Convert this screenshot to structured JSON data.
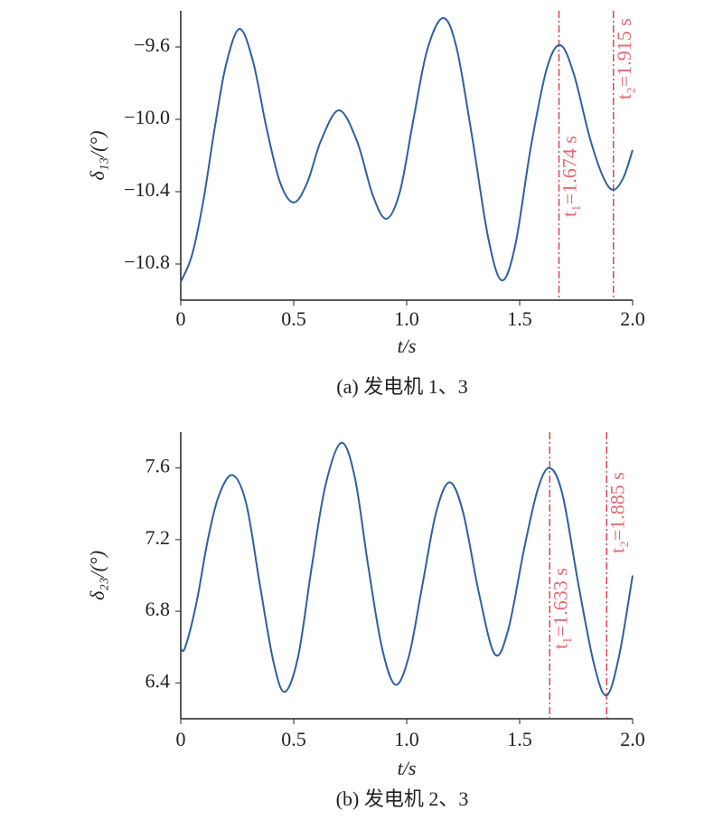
{
  "chart_data": [
    {
      "type": "line",
      "x_label": "t/s",
      "y_label": "δ₁₃/(°)",
      "caption": "(a) 发电机 1、3",
      "x": [
        0,
        0.05,
        0.1,
        0.15,
        0.2,
        0.26,
        0.32,
        0.38,
        0.44,
        0.5,
        0.56,
        0.62,
        0.7,
        0.78,
        0.85,
        0.91,
        0.97,
        1.03,
        1.09,
        1.16,
        1.22,
        1.29,
        1.36,
        1.42,
        1.48,
        1.55,
        1.62,
        1.68,
        1.74,
        1.81,
        1.87,
        1.915,
        1.96,
        2.0
      ],
      "series": [
        {
          "color": "#2e5fa3",
          "values": [
            -10.9,
            -10.75,
            -10.45,
            -10.05,
            -9.7,
            -9.5,
            -9.68,
            -10.05,
            -10.35,
            -10.46,
            -10.35,
            -10.12,
            -9.95,
            -10.12,
            -10.42,
            -10.55,
            -10.4,
            -10.0,
            -9.62,
            -9.44,
            -9.6,
            -10.1,
            -10.65,
            -10.89,
            -10.7,
            -10.15,
            -9.72,
            -9.59,
            -9.75,
            -10.1,
            -10.32,
            -10.39,
            -10.32,
            -10.17
          ]
        }
      ],
      "xlim": [
        0,
        2.0
      ],
      "xticks": [
        0,
        0.5,
        {
          "value": 1.0,
          "label": "1.0"
        },
        1.5,
        {
          "value": 2.0,
          "label": "2.0"
        }
      ],
      "ylim": [
        -11.0,
        -9.4
      ],
      "yticks": [
        {
          "value": -9.6,
          "label": "−9.6"
        },
        {
          "value": -10.0,
          "label": "−10.0"
        },
        {
          "value": -10.4,
          "label": "−10.4"
        },
        {
          "value": -10.8,
          "label": "−10.8"
        }
      ],
      "vlines": [
        {
          "value": 1.674,
          "label": "t₁=1.674 s"
        },
        {
          "value": 1.915,
          "label": "t₂=1.915 s"
        }
      ],
      "vline_color": "#e0434f"
    },
    {
      "type": "line",
      "x_label": "t/s",
      "y_label": "δ₂₃/(°)",
      "caption": "(b) 发电机 2、3",
      "x": [
        0,
        0.02,
        0.07,
        0.12,
        0.17,
        0.23,
        0.29,
        0.35,
        0.41,
        0.46,
        0.52,
        0.58,
        0.64,
        0.71,
        0.77,
        0.83,
        0.89,
        0.95,
        1.01,
        1.07,
        1.13,
        1.19,
        1.25,
        1.32,
        1.39,
        1.45,
        1.52,
        1.58,
        1.633,
        1.69,
        1.76,
        1.83,
        1.885,
        1.94,
        2.0
      ],
      "series": [
        {
          "color": "#2e5fa3",
          "values": [
            6.59,
            6.6,
            6.85,
            7.2,
            7.45,
            7.56,
            7.4,
            6.95,
            6.52,
            6.35,
            6.55,
            7.05,
            7.5,
            7.74,
            7.55,
            7.05,
            6.6,
            6.39,
            6.55,
            6.95,
            7.35,
            7.52,
            7.35,
            6.9,
            6.56,
            6.7,
            7.15,
            7.48,
            7.6,
            7.45,
            6.95,
            6.5,
            6.33,
            6.55,
            7.0
          ]
        }
      ],
      "xlim": [
        0,
        2.0
      ],
      "xticks": [
        0,
        0.5,
        {
          "value": 1.0,
          "label": "1.0"
        },
        1.5,
        {
          "value": 2.0,
          "label": "2.0"
        }
      ],
      "ylim": [
        6.2,
        7.8
      ],
      "yticks": [
        6.4,
        6.8,
        7.2,
        7.6
      ],
      "vlines": [
        {
          "value": 1.633,
          "label": "t₁=1.633 s"
        },
        {
          "value": 1.885,
          "label": "t₂=1.885 s"
        }
      ],
      "vline_color": "#e0434f"
    }
  ]
}
